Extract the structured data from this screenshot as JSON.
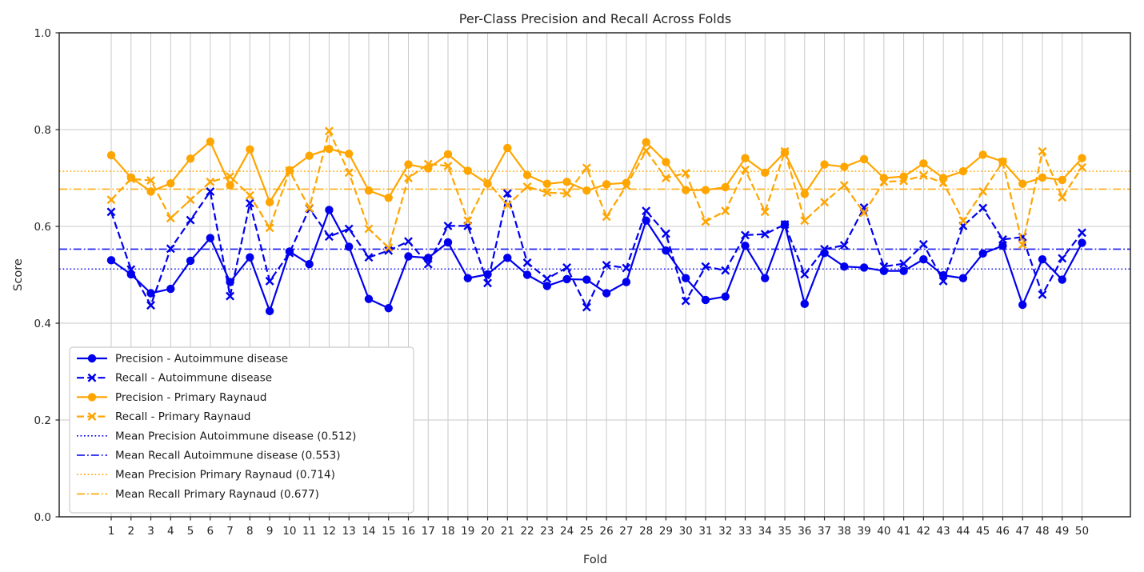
{
  "figure": {
    "title": "Per-Class Precision and Recall Across Folds"
  },
  "chart_data": {
    "type": "line",
    "title": "Per-Class Precision and Recall Across Folds",
    "xlabel": "Fold",
    "ylabel": "Score",
    "ylim": [
      0.0,
      1.0
    ],
    "yticks": [
      0.0,
      0.2,
      0.4,
      0.6,
      0.8,
      1.0
    ],
    "grid": true,
    "legend_position": "lower left",
    "colors": {
      "autoimmune_blue": "#0000ee",
      "raynaud_orange": "#ffa500"
    },
    "x": [
      1,
      2,
      3,
      4,
      5,
      6,
      7,
      8,
      9,
      10,
      11,
      12,
      13,
      14,
      15,
      16,
      17,
      18,
      19,
      20,
      21,
      22,
      23,
      24,
      25,
      26,
      27,
      28,
      29,
      30,
      31,
      32,
      33,
      34,
      35,
      36,
      37,
      38,
      39,
      40,
      41,
      42,
      43,
      44,
      45,
      46,
      47,
      48,
      49,
      50
    ],
    "series": [
      {
        "name": "Precision - Autoimmune disease",
        "color": "#0000ee",
        "linestyle": "solid",
        "marker": "circle",
        "values": [
          0.53,
          0.501,
          0.462,
          0.471,
          0.529,
          0.576,
          0.485,
          0.536,
          0.425,
          0.548,
          0.522,
          0.634,
          0.558,
          0.45,
          0.431,
          0.538,
          0.535,
          0.567,
          0.493,
          0.501,
          0.535,
          0.5,
          0.477,
          0.491,
          0.49,
          0.462,
          0.485,
          0.612,
          0.55,
          0.493,
          0.448,
          0.455,
          0.56,
          0.493,
          0.604,
          0.44,
          0.545,
          0.517,
          0.515,
          0.508,
          0.508,
          0.532,
          0.499,
          0.493,
          0.544,
          0.56,
          0.438,
          0.532,
          0.49,
          0.566
        ]
      },
      {
        "name": "Recall - Autoimmune disease",
        "color": "#0000ee",
        "linestyle": "dashed",
        "marker": "x",
        "values": [
          0.63,
          0.511,
          0.437,
          0.554,
          0.613,
          0.672,
          0.456,
          0.648,
          0.487,
          0.545,
          0.637,
          0.579,
          0.595,
          0.536,
          0.55,
          0.569,
          0.522,
          0.601,
          0.601,
          0.483,
          0.668,
          0.525,
          0.492,
          0.515,
          0.433,
          0.52,
          0.514,
          0.632,
          0.585,
          0.446,
          0.517,
          0.509,
          0.582,
          0.584,
          0.604,
          0.501,
          0.553,
          0.561,
          0.639,
          0.517,
          0.523,
          0.563,
          0.487,
          0.601,
          0.638,
          0.573,
          0.578,
          0.459,
          0.534,
          0.587
        ]
      },
      {
        "name": "Precision - Primary Raynaud",
        "color": "#ffa500",
        "linestyle": "solid",
        "marker": "circle",
        "values": [
          0.747,
          0.701,
          0.672,
          0.689,
          0.74,
          0.775,
          0.685,
          0.759,
          0.65,
          0.716,
          0.746,
          0.76,
          0.75,
          0.674,
          0.659,
          0.728,
          0.72,
          0.749,
          0.715,
          0.688,
          0.762,
          0.706,
          0.688,
          0.692,
          0.674,
          0.687,
          0.69,
          0.774,
          0.733,
          0.675,
          0.675,
          0.681,
          0.741,
          0.711,
          0.753,
          0.667,
          0.728,
          0.723,
          0.739,
          0.7,
          0.703,
          0.73,
          0.7,
          0.714,
          0.748,
          0.734,
          0.688,
          0.701,
          0.696,
          0.741
        ]
      },
      {
        "name": "Recall - Primary Raynaud",
        "color": "#ffa500",
        "linestyle": "dashed",
        "marker": "x",
        "values": [
          0.655,
          0.698,
          0.695,
          0.617,
          0.655,
          0.692,
          0.703,
          0.664,
          0.597,
          0.715,
          0.638,
          0.797,
          0.711,
          0.595,
          0.556,
          0.7,
          0.729,
          0.725,
          0.612,
          0.692,
          0.644,
          0.682,
          0.67,
          0.668,
          0.721,
          0.62,
          0.684,
          0.756,
          0.7,
          0.71,
          0.61,
          0.632,
          0.717,
          0.63,
          0.755,
          0.612,
          0.65,
          0.685,
          0.628,
          0.692,
          0.694,
          0.705,
          0.69,
          0.612,
          0.672,
          0.733,
          0.562,
          0.755,
          0.66,
          0.722
        ]
      }
    ],
    "mean_lines": [
      {
        "label": "Mean Precision Autoimmune disease (0.512)",
        "value": 0.512,
        "color": "#0000ee",
        "linestyle": "dotted"
      },
      {
        "label": "Mean Recall Autoimmune disease (0.553)",
        "value": 0.553,
        "color": "#0000ee",
        "linestyle": "dashdot"
      },
      {
        "label": "Mean Precision Primary Raynaud (0.714)",
        "value": 0.714,
        "color": "#ffa500",
        "linestyle": "dotted"
      },
      {
        "label": "Mean Recall Primary Raynaud (0.677)",
        "value": 0.677,
        "color": "#ffa500",
        "linestyle": "dashdot"
      }
    ]
  }
}
